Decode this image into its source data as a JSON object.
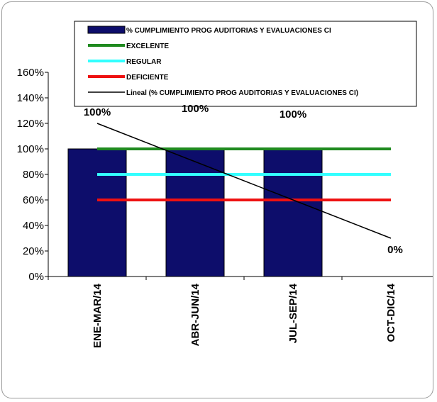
{
  "chart_data": {
    "type": "bar",
    "categories": [
      "ENE-MAR/14",
      "ABR-JUN/14",
      "JUL-SEP/14",
      "OCT-DIC/14"
    ],
    "series": [
      {
        "name": "% CUMPLIMIENTO PROG AUDITORIAS Y EVALUACIONES CI",
        "type": "bar",
        "values": [
          100,
          100,
          100,
          0
        ],
        "color": "#0d0d6b",
        "data_labels": [
          "100%",
          "100%",
          "100%",
          "0%"
        ]
      },
      {
        "name": "EXCELENTE",
        "type": "line",
        "values": [
          100,
          100,
          100,
          100
        ],
        "color": "#1f8a1f"
      },
      {
        "name": "REGULAR",
        "type": "line",
        "values": [
          80,
          80,
          80,
          80
        ],
        "color": "#33ffff"
      },
      {
        "name": "DEFICIENTE",
        "type": "line",
        "values": [
          60,
          60,
          60,
          60
        ],
        "color": "#ee1111"
      },
      {
        "name": "Lineal (% CUMPLIMIENTO PROG AUDITORIAS Y EVALUACIONES CI)",
        "type": "trendline",
        "values": [
          120,
          90,
          60,
          30
        ],
        "color": "#000000"
      }
    ],
    "y_ticks": [
      "0%",
      "20%",
      "40%",
      "60%",
      "80%",
      "100%",
      "120%",
      "140%",
      "160%"
    ],
    "ylim": [
      0,
      160
    ],
    "legend_position": "top",
    "grid": false
  }
}
